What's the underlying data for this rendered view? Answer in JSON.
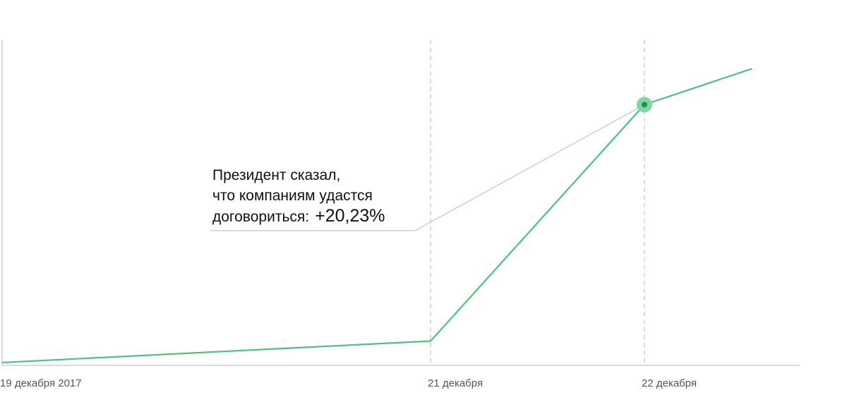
{
  "colors": {
    "line": "#4cc27a",
    "marker_outer": "#7ed8a0",
    "marker_inner": "#1f8f4c",
    "axis": "#cfcfcf",
    "guide": "#c8c8c8",
    "leader": "#c4c4c4"
  },
  "chart_data": {
    "type": "line",
    "x": [
      "2017-12-19",
      "2017-12-21",
      "2017-12-22",
      "2017-12-22T12:00"
    ],
    "values": [
      1.0,
      1.15,
      2.8,
      3.05
    ],
    "xlim": [
      "2017-12-19",
      "2017-12-23"
    ],
    "ylim": [
      0.98,
      3.25
    ],
    "x_tick_labels": [
      {
        "x": "2017-12-19",
        "label": "19 декабря 2017"
      },
      {
        "x": "2017-12-21",
        "label": "21 декабря"
      },
      {
        "x": "2017-12-22",
        "label": "22 декабря"
      }
    ],
    "vertical_guides": [
      "2017-12-21",
      "2017-12-22"
    ],
    "highlight_point": {
      "x": "2017-12-22",
      "y": 2.8
    },
    "annotation": {
      "lines": [
        "Президент сказал,",
        "что компаниям удастся",
        "договориться:"
      ],
      "value": "+20,23%",
      "points_to": {
        "x": "2017-12-22",
        "y": 2.8
      }
    },
    "grid": false,
    "legend": "none"
  }
}
